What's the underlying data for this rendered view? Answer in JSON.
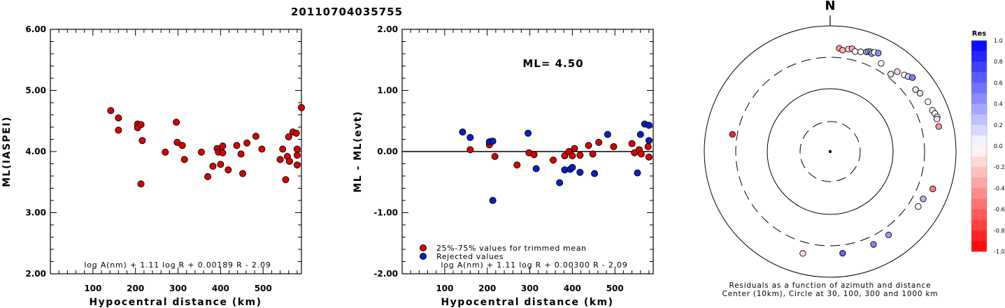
{
  "title": "20110704035755",
  "colors": {
    "used": "#dd0000",
    "rejected": "#0022cc"
  },
  "chart_data": [
    {
      "type": "scatter",
      "panel": "left",
      "xlabel": "Hypocentral distance (km)",
      "ylabel": "ML(IASPEI)",
      "xlim": [
        0,
        590
      ],
      "ylim": [
        2.0,
        6.0
      ],
      "xticks": [
        "100",
        "200",
        "300",
        "400",
        "500"
      ],
      "yticks": [
        "2.00",
        "3.00",
        "4.00",
        "5.00",
        "6.00"
      ],
      "formula": "log A(nm) + 1.11 log R + 0.00189 R - 2.09",
      "points": [
        [
          142,
          4.67
        ],
        [
          160,
          4.55
        ],
        [
          160,
          4.35
        ],
        [
          205,
          4.45
        ],
        [
          205,
          4.39
        ],
        [
          213,
          4.44
        ],
        [
          216,
          4.18
        ],
        [
          213,
          3.47
        ],
        [
          270,
          3.99
        ],
        [
          296,
          4.48
        ],
        [
          298,
          4.15
        ],
        [
          310,
          4.1
        ],
        [
          315,
          3.87
        ],
        [
          355,
          3.99
        ],
        [
          370,
          3.59
        ],
        [
          382,
          3.76
        ],
        [
          392,
          4.05
        ],
        [
          395,
          3.99
        ],
        [
          400,
          3.79
        ],
        [
          405,
          4.09
        ],
        [
          405,
          3.98
        ],
        [
          418,
          3.7
        ],
        [
          438,
          4.1
        ],
        [
          448,
          3.96
        ],
        [
          452,
          3.64
        ],
        [
          462,
          4.14
        ],
        [
          483,
          4.25
        ],
        [
          497,
          4.04
        ],
        [
          540,
          3.87
        ],
        [
          546,
          4.04
        ],
        [
          553,
          3.54
        ],
        [
          557,
          3.92
        ],
        [
          560,
          4.24
        ],
        [
          562,
          3.84
        ],
        [
          570,
          4.32
        ],
        [
          578,
          4.3
        ],
        [
          580,
          3.94
        ],
        [
          580,
          3.78
        ],
        [
          580,
          4.04
        ],
        [
          590,
          4.72
        ]
      ]
    },
    {
      "type": "scatter",
      "panel": "middle",
      "xlabel": "Hypocentral distance (km)",
      "ylabel": "ML - ML(evt)",
      "xlim": [
        0,
        590
      ],
      "ylim": [
        -2.0,
        2.0
      ],
      "xticks": [
        "100",
        "200",
        "300",
        "400",
        "500"
      ],
      "yticks": [
        "-2.00",
        "-1.00",
        "0.00",
        "1.00",
        "2.00"
      ],
      "ml_text": "ML= 4.50",
      "formula": "log A(nm) + 1.11 log R + 0.00300 R - 2.09",
      "legend": [
        "25%-75% values for trimmed mean",
        "Rejected values"
      ],
      "used_points": [
        [
          160,
          0.03
        ],
        [
          205,
          0.11
        ],
        [
          218,
          -0.08
        ],
        [
          270,
          -0.22
        ],
        [
          298,
          -0.02
        ],
        [
          310,
          -0.05
        ],
        [
          355,
          -0.14
        ],
        [
          382,
          -0.07
        ],
        [
          392,
          0.0
        ],
        [
          400,
          -0.07
        ],
        [
          405,
          0.05
        ],
        [
          418,
          -0.06
        ],
        [
          438,
          0.1
        ],
        [
          448,
          -0.04
        ],
        [
          462,
          0.15
        ],
        [
          497,
          0.08
        ],
        [
          540,
          0.13
        ],
        [
          546,
          -0.02
        ],
        [
          557,
          0.03
        ],
        [
          562,
          -0.04
        ],
        [
          578,
          0.08
        ],
        [
          580,
          -0.09
        ]
      ],
      "rejected_points": [
        [
          142,
          0.32
        ],
        [
          160,
          0.23
        ],
        [
          205,
          0.16
        ],
        [
          213,
          0.17
        ],
        [
          213,
          -0.8
        ],
        [
          296,
          0.3
        ],
        [
          315,
          -0.28
        ],
        [
          370,
          -0.51
        ],
        [
          382,
          -0.3
        ],
        [
          395,
          -0.29
        ],
        [
          400,
          -0.26
        ],
        [
          418,
          -0.34
        ],
        [
          452,
          -0.36
        ],
        [
          483,
          0.28
        ],
        [
          553,
          -0.35
        ],
        [
          560,
          0.28
        ],
        [
          570,
          0.45
        ],
        [
          580,
          0.43
        ],
        [
          580,
          0.18
        ]
      ]
    },
    {
      "type": "scatter",
      "panel": "polar",
      "north_label": "N",
      "caption_lines": [
        "Residuals as a function of azimuth and distance",
        "Center (10km), Circle at 30, 100, 300 and 1000 km"
      ],
      "colorbar": {
        "title": "Res",
        "ticks": [
          "1.0",
          "0.8",
          "0.6",
          "0.4",
          "0.2",
          "0.0",
          "-0.2",
          "-0.4",
          "-0.6",
          "-0.8",
          "-1.0"
        ]
      },
      "points": [
        {
          "az": 5,
          "dist": 430,
          "res": -0.4
        },
        {
          "az": 7,
          "dist": 405,
          "res": -0.3
        },
        {
          "az": 10,
          "dist": 435,
          "res": -0.2
        },
        {
          "az": 12,
          "dist": 455,
          "res": -0.35
        },
        {
          "az": 14,
          "dist": 420,
          "res": 0.0
        },
        {
          "az": 17,
          "dist": 440,
          "res": 0.0
        },
        {
          "az": 20,
          "dist": 470,
          "res": 0.3
        },
        {
          "az": 21,
          "dist": 490,
          "res": 0.2
        },
        {
          "az": 22,
          "dist": 500,
          "res": 0.35
        },
        {
          "az": 23,
          "dist": 480,
          "res": 0.4
        },
        {
          "az": 24,
          "dist": 520,
          "res": 0.0
        },
        {
          "az": 26,
          "dist": 540,
          "res": 0.45
        },
        {
          "az": 30,
          "dist": 400,
          "res": 0.0
        },
        {
          "az": 38,
          "dist": 350,
          "res": 0.1
        },
        {
          "az": 40,
          "dist": 440,
          "res": -0.15
        },
        {
          "az": 44,
          "dist": 480,
          "res": 0.0
        },
        {
          "az": 46,
          "dist": 510,
          "res": 0.2
        },
        {
          "az": 48,
          "dist": 560,
          "res": 0.5
        },
        {
          "az": 54,
          "dist": 460,
          "res": 0.1
        },
        {
          "az": 57,
          "dist": 490,
          "res": -0.1
        },
        {
          "az": 63,
          "dist": 540,
          "res": 0.0
        },
        {
          "az": 68,
          "dist": 550,
          "res": 0.0
        },
        {
          "az": 70,
          "dist": 575,
          "res": -0.05
        },
        {
          "az": 72,
          "dist": 600,
          "res": 0.0
        },
        {
          "az": 73,
          "dist": 580,
          "res": 0.1
        },
        {
          "az": 77,
          "dist": 575,
          "res": -0.4
        },
        {
          "az": 110,
          "dist": 530,
          "res": -0.5
        },
        {
          "az": 117,
          "dist": 440,
          "res": 0.3
        },
        {
          "az": 122,
          "dist": 430,
          "res": 0.0
        },
        {
          "az": 145,
          "dist": 400,
          "res": 0.4
        },
        {
          "az": 155,
          "dist": 410,
          "res": 0.5
        },
        {
          "az": 173,
          "dist": 410,
          "res": 0.6
        },
        {
          "az": 195,
          "dist": 460,
          "res": -0.15
        },
        {
          "az": 280,
          "dist": 360,
          "res": -0.85
        }
      ]
    }
  ]
}
